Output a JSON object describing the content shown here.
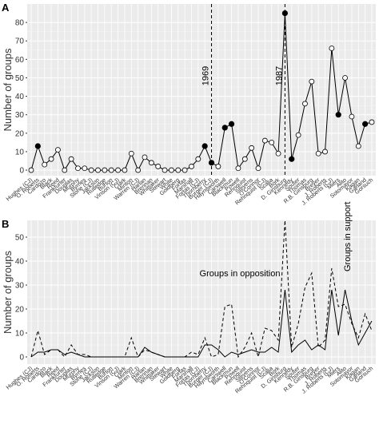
{
  "chart_data": [
    {
      "type": "line",
      "panel": "A",
      "y_label": "Number of groups",
      "categories": [
        "Hughes (CJ)",
        "O. Roberts",
        "Cardozo",
        "Black",
        "Reed",
        "Frankfurter",
        "Douglas",
        "Murphy",
        "Byrnes",
        "Stone (CJ)",
        "Jackson",
        "Rutledge",
        "Burton",
        "Vinson (CJ)",
        "Clark",
        "Minton",
        "Warren (CJ)",
        "Harlan",
        "Brennan",
        "Whittaker",
        "Stewart",
        "White",
        "Goldberg",
        "Fortas",
        "Marshall",
        "Fortas (CJ)",
        "Thornberry",
        "Burger (CJ)",
        "Haynsworth",
        "Carswell",
        "Blackmun",
        "Powell",
        "Rehnquist",
        "Stevens",
        "O'Connor",
        "Rehnquist (CJ)",
        "Scalia",
        "Bork",
        "D. Ginsburg",
        "Kennedy",
        "Souter",
        "Thomas",
        "R.B. Ginsburg",
        "Breyer",
        "J. Roberts",
        "J. Roberts (CJ)",
        "Miers",
        "Alito",
        "Sotomayor",
        "Kagan",
        "Garland",
        "Gorsuch"
      ],
      "series": [
        {
          "color": "#000000",
          "values": [
            0,
            13,
            3,
            6,
            11,
            0,
            6,
            1,
            1,
            0,
            0,
            0,
            0,
            0,
            0,
            9,
            0,
            7,
            4,
            2,
            0,
            0,
            0,
            0,
            2,
            6,
            13,
            4,
            2,
            23,
            25,
            1,
            6,
            12,
            1,
            16,
            15,
            9,
            85,
            6,
            19,
            36,
            48,
            9,
            10,
            66,
            30,
            50,
            29,
            13,
            25,
            26
          ],
          "filled": [
            false,
            true,
            false,
            false,
            false,
            false,
            false,
            false,
            false,
            false,
            false,
            false,
            false,
            false,
            false,
            false,
            false,
            false,
            false,
            false,
            false,
            false,
            false,
            false,
            false,
            false,
            true,
            true,
            false,
            true,
            true,
            false,
            false,
            false,
            false,
            false,
            false,
            false,
            true,
            true,
            false,
            false,
            false,
            false,
            false,
            false,
            true,
            false,
            false,
            false,
            true,
            false
          ]
        }
      ],
      "vlines": [
        {
          "text": "1969",
          "at": "Burger (CJ)"
        },
        {
          "text": "1987",
          "at": "D. Ginsburg"
        }
      ],
      "ylim": [
        -3,
        90
      ],
      "yticks": [
        0,
        10,
        20,
        30,
        40,
        50,
        60,
        70,
        80
      ],
      "grid": true
    },
    {
      "type": "line",
      "panel": "B",
      "y_label": "Number of groups",
      "categories": [
        "Hughes (CJ)",
        "O. Roberts",
        "Cardozo",
        "Black",
        "Reed",
        "Frankfurter",
        "Douglas",
        "Murphy",
        "Byrnes",
        "Stone (CJ)",
        "Jackson",
        "Rutledge",
        "Burton",
        "Vinson (CJ)",
        "Clark",
        "Minton",
        "Warren (CJ)",
        "Harlan",
        "Brennan",
        "Whittaker",
        "Stewart",
        "White",
        "Goldberg",
        "Fortas",
        "Marshall",
        "Fortas (CJ)",
        "Thornberry",
        "Burger (CJ)",
        "Haynsworth",
        "Carswell",
        "Blackmun",
        "Powell",
        "Rehnquist",
        "Stevens",
        "O'Connor",
        "Rehnquist (CJ)",
        "Scalia",
        "Bork",
        "D. Ginsburg",
        "Kennedy",
        "Souter",
        "Thomas",
        "R.B. Ginsburg",
        "Breyer",
        "J. Roberts",
        "J. Roberts (CJ)",
        "Miers",
        "Alito",
        "Sotomayor",
        "Kagan",
        "Garland",
        "Gorsuch"
      ],
      "series": [
        {
          "name": "Groups in opposition",
          "color": "#000000",
          "dash": true,
          "values": [
            0,
            11,
            1,
            3,
            3,
            0,
            5,
            1,
            1,
            0,
            0,
            0,
            0,
            0,
            0,
            8,
            0,
            3,
            2,
            1,
            0,
            0,
            0,
            0,
            2,
            1,
            8,
            0,
            1,
            21,
            22,
            0,
            4,
            10,
            0,
            12,
            11,
            7,
            57,
            4,
            14,
            29,
            35,
            4,
            7,
            37,
            21,
            22,
            14,
            8,
            18,
            11
          ]
        },
        {
          "name": "Groups in support",
          "color": "#000000",
          "dash": false,
          "values": [
            0,
            2,
            2,
            3,
            3,
            1,
            2,
            1,
            0,
            0,
            0,
            0,
            0,
            0,
            0,
            0,
            0,
            4,
            2,
            1,
            0,
            0,
            0,
            0,
            0,
            0,
            5,
            5,
            3,
            0,
            2,
            1,
            2,
            3,
            2,
            2,
            4,
            2,
            28,
            2,
            5,
            7,
            3,
            5,
            3,
            28,
            9,
            28,
            15,
            5,
            10,
            15
          ]
        }
      ],
      "ylim": [
        -3,
        57
      ],
      "yticks": [
        0,
        10,
        20,
        30,
        40,
        50
      ],
      "grid": true
    }
  ]
}
